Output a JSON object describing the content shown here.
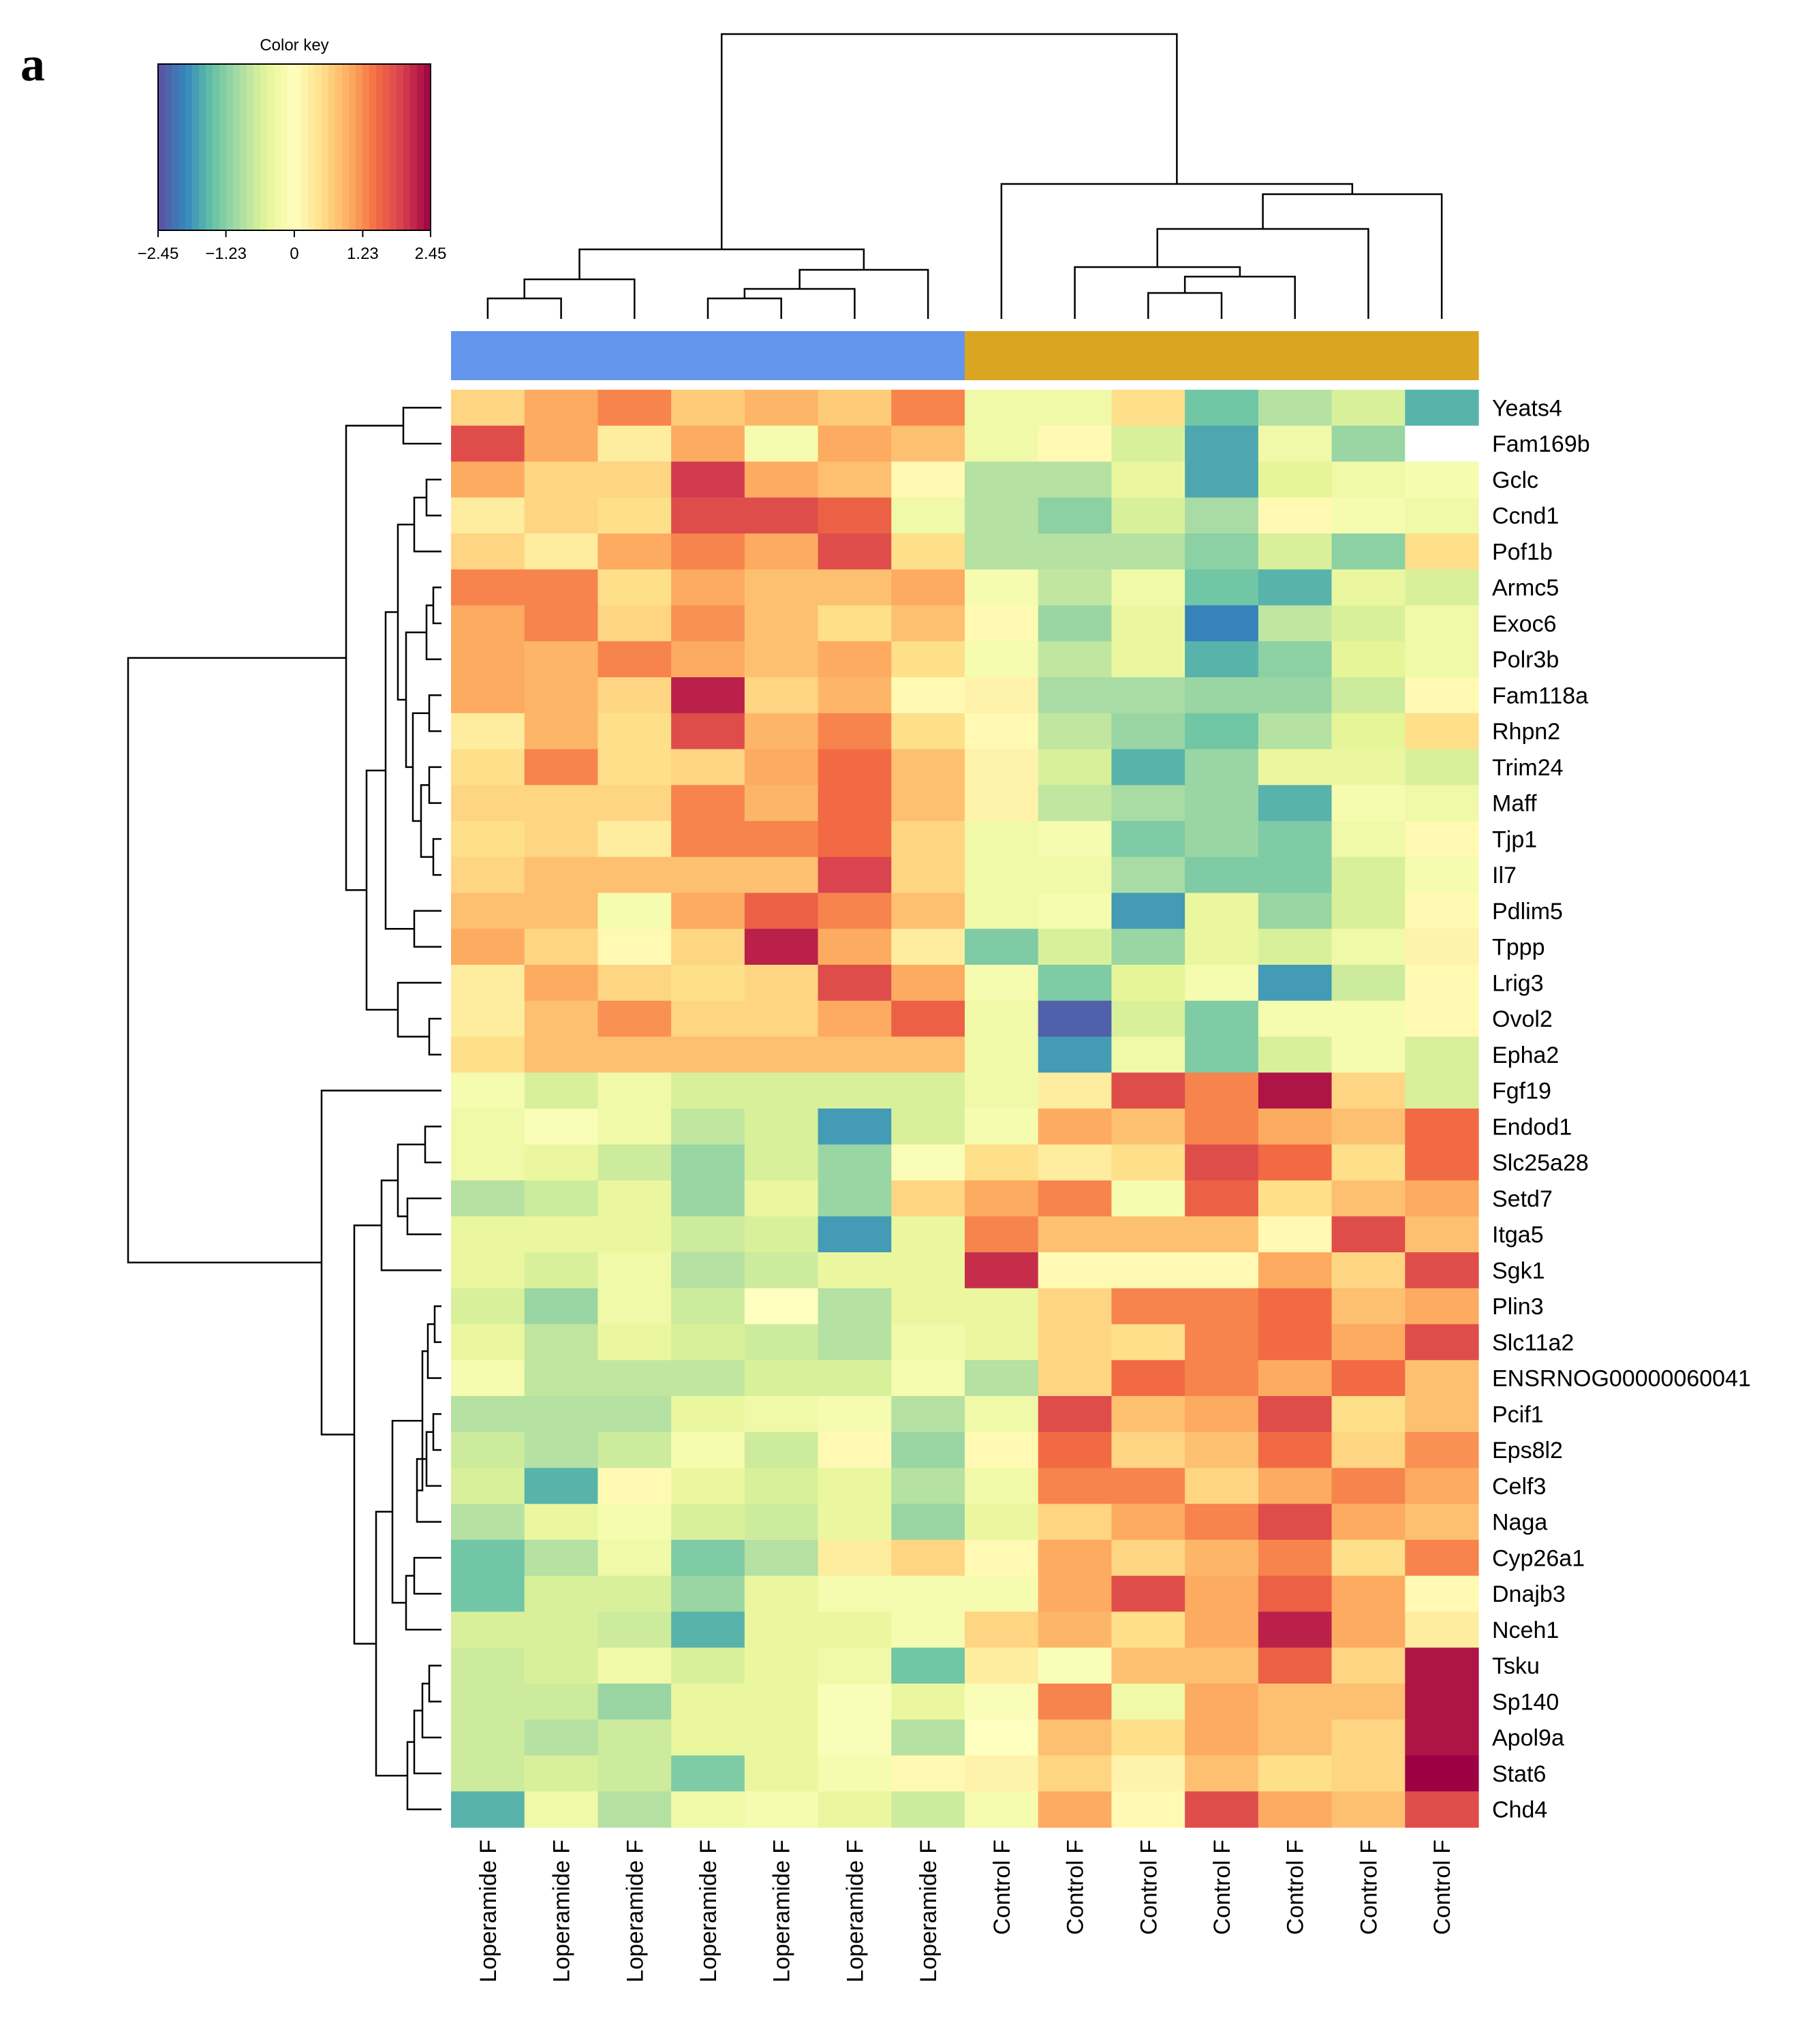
{
  "chart_data": {
    "type": "heatmap",
    "panel_label": "a",
    "color_key": {
      "title": "Color key",
      "min": -2.45,
      "max": 2.45,
      "tick_values": [
        -2.45,
        -1.23,
        0,
        1.23,
        2.45
      ],
      "tick_labels": [
        "−2.45",
        "−1.23",
        "0",
        "1.23",
        "2.45"
      ],
      "palette": [
        "#5e4fa2",
        "#3288bd",
        "#66c2a5",
        "#abdda4",
        "#e6f598",
        "#ffffbf",
        "#fee08b",
        "#fdae61",
        "#f46d43",
        "#d53e4f",
        "#9e0142"
      ]
    },
    "columns": [
      "Loperamide F",
      "Loperamide F",
      "Loperamide F",
      "Loperamide F",
      "Loperamide F",
      "Loperamide F",
      "Loperamide F",
      "Control F",
      "Control F",
      "Control F",
      "Control F",
      "Control F",
      "Control F",
      "Control F"
    ],
    "column_groups": [
      {
        "name": "Loperamide F",
        "color": "#6495ED"
      },
      {
        "name": "Control F",
        "color": "#DAA520"
      }
    ],
    "column_group_index": [
      0,
      0,
      0,
      0,
      0,
      0,
      0,
      1,
      1,
      1,
      1,
      1,
      1,
      1
    ],
    "rows": [
      "Yeats4",
      "Fam169b",
      "Gclc",
      "Ccnd1",
      "Pof1b",
      "Armc5",
      "Exoc6",
      "Polr3b",
      "Fam118a",
      "Rhpn2",
      "Trim24",
      "Maff",
      "Tjp1",
      "Il7",
      "Pdlim5",
      "Tppp",
      "Lrig3",
      "Ovol2",
      "Epha2",
      "Fgf19",
      "Endod1",
      "Slc25a28",
      "Setd7",
      "Itga5",
      "Sgk1",
      "Plin3",
      "Slc11a2",
      "ENSRNOG00000060041",
      "Pcif1",
      "Eps8l2",
      "Celf3",
      "Naga",
      "Cyp26a1",
      "Dnajb3",
      "Nceh1",
      "Tsku",
      "Sp140",
      "Apol9a",
      "Stat6",
      "Chd4"
    ],
    "values": [
      [
        0.6,
        1.0,
        1.3,
        0.7,
        0.9,
        0.7,
        1.3,
        -0.3,
        -0.3,
        0.5,
        -1.4,
        -0.9,
        -0.6,
        -1.6
      ],
      [
        1.8,
        1.0,
        0.3,
        1.0,
        -0.2,
        1.0,
        0.8,
        -0.3,
        0.1,
        -0.6,
        -1.7,
        -0.3,
        -1.1,
        null
      ],
      [
        1.0,
        0.6,
        0.6,
        2.0,
        1.0,
        0.8,
        0.1,
        -0.9,
        -0.9,
        -0.4,
        -1.7,
        -0.5,
        -0.3,
        -0.2
      ],
      [
        0.3,
        0.6,
        0.5,
        1.8,
        1.8,
        1.6,
        -0.3,
        -0.9,
        -1.2,
        -0.6,
        -1.0,
        0.1,
        -0.2,
        -0.3
      ],
      [
        0.6,
        0.3,
        1.0,
        1.3,
        1.0,
        1.8,
        0.5,
        -0.9,
        -0.9,
        -0.9,
        -1.2,
        -0.6,
        -1.2,
        0.5
      ],
      [
        1.3,
        1.3,
        0.5,
        1.0,
        0.8,
        0.8,
        1.0,
        -0.2,
        -0.8,
        -0.3,
        -1.4,
        -1.6,
        -0.4,
        -0.6
      ],
      [
        1.0,
        1.3,
        0.6,
        1.2,
        0.8,
        0.5,
        0.8,
        0.1,
        -1.1,
        -0.4,
        -2.0,
        -0.8,
        -0.6,
        -0.3
      ],
      [
        1.0,
        0.9,
        1.3,
        1.0,
        0.8,
        1.0,
        0.5,
        -0.2,
        -0.8,
        -0.4,
        -1.6,
        -1.2,
        -0.5,
        -0.3
      ],
      [
        1.0,
        0.9,
        0.6,
        2.2,
        0.6,
        0.9,
        0.1,
        0.2,
        -1.0,
        -1.0,
        -1.1,
        -1.1,
        -0.7,
        0.1
      ],
      [
        0.3,
        0.9,
        0.5,
        1.8,
        0.9,
        1.3,
        0.5,
        0.1,
        -0.8,
        -1.1,
        -1.4,
        -0.9,
        -0.5,
        0.5
      ],
      [
        0.5,
        1.3,
        0.5,
        0.6,
        1.0,
        1.5,
        0.8,
        0.2,
        -0.6,
        -1.6,
        -1.1,
        -0.4,
        -0.4,
        -0.6
      ],
      [
        0.6,
        0.6,
        0.6,
        1.3,
        0.9,
        1.5,
        0.8,
        0.2,
        -0.8,
        -1.0,
        -1.1,
        -1.6,
        -0.2,
        -0.3
      ],
      [
        0.5,
        0.6,
        0.3,
        1.3,
        1.3,
        1.5,
        0.6,
        -0.3,
        -0.2,
        -1.3,
        -1.1,
        -1.3,
        -0.3,
        0.1
      ],
      [
        0.6,
        0.8,
        0.8,
        0.8,
        0.8,
        1.9,
        0.6,
        -0.3,
        -0.3,
        -1.0,
        -1.3,
        -1.3,
        -0.6,
        -0.2
      ],
      [
        0.8,
        0.8,
        -0.2,
        1.0,
        1.6,
        1.3,
        0.8,
        -0.3,
        -0.2,
        -1.8,
        -0.4,
        -1.1,
        -0.6,
        0.1
      ],
      [
        1.0,
        0.6,
        0.1,
        0.6,
        2.2,
        1.0,
        0.3,
        -1.3,
        -0.6,
        -1.1,
        -0.4,
        -0.6,
        -0.3,
        0.2
      ],
      [
        0.3,
        1.0,
        0.6,
        0.5,
        0.6,
        1.8,
        1.0,
        -0.2,
        -1.3,
        -0.5,
        -0.2,
        -1.8,
        -0.7,
        0.1
      ],
      [
        0.3,
        0.8,
        1.2,
        0.6,
        0.6,
        1.0,
        1.6,
        -0.3,
        -2.3,
        -0.6,
        -1.3,
        -0.2,
        -0.2,
        0.1
      ],
      [
        0.5,
        0.8,
        0.8,
        0.8,
        0.8,
        0.8,
        0.8,
        -0.3,
        -1.8,
        -0.3,
        -1.3,
        -0.6,
        -0.2,
        -0.6
      ],
      [
        -0.2,
        -0.6,
        -0.3,
        -0.6,
        -0.6,
        -0.6,
        -0.6,
        -0.3,
        0.3,
        1.8,
        1.3,
        2.3,
        0.6,
        -0.6
      ],
      [
        -0.3,
        -0.1,
        -0.3,
        -0.8,
        -0.6,
        -1.8,
        -0.6,
        -0.2,
        1.0,
        0.8,
        1.3,
        1.0,
        0.8,
        1.5
      ],
      [
        -0.3,
        -0.4,
        -0.7,
        -1.1,
        -0.6,
        -1.1,
        -0.1,
        0.5,
        0.3,
        0.5,
        1.8,
        1.5,
        0.5,
        1.5
      ],
      [
        -0.9,
        -0.7,
        -0.4,
        -1.1,
        -0.4,
        -1.1,
        0.6,
        1.0,
        1.3,
        -0.2,
        1.6,
        0.5,
        0.8,
        1.0
      ],
      [
        -0.4,
        -0.4,
        -0.4,
        -0.7,
        -0.6,
        -1.8,
        -0.4,
        1.3,
        0.8,
        0.8,
        0.8,
        0.1,
        1.8,
        0.8
      ],
      [
        -0.4,
        -0.6,
        -0.3,
        -0.9,
        -0.7,
        -0.4,
        -0.4,
        2.1,
        0.1,
        0.1,
        0.1,
        1.0,
        0.6,
        1.8
      ],
      [
        -0.6,
        -1.1,
        -0.3,
        -0.7,
        0.0,
        -0.9,
        -0.4,
        -0.4,
        0.6,
        1.3,
        1.3,
        1.5,
        0.8,
        1.0
      ],
      [
        -0.4,
        -0.8,
        -0.4,
        -0.6,
        -0.7,
        -0.9,
        -0.3,
        -0.4,
        0.6,
        0.5,
        1.3,
        1.5,
        1.0,
        1.8
      ],
      [
        -0.2,
        -0.8,
        -0.8,
        -0.8,
        -0.6,
        -0.6,
        -0.2,
        -0.9,
        0.6,
        1.5,
        1.3,
        1.0,
        1.5,
        0.8
      ],
      [
        -0.9,
        -0.9,
        -0.9,
        -0.4,
        -0.3,
        -0.2,
        -0.9,
        -0.3,
        1.8,
        0.8,
        1.0,
        1.8,
        0.5,
        0.8
      ],
      [
        -0.7,
        -0.9,
        -0.7,
        -0.2,
        -0.7,
        0.1,
        -1.1,
        0.1,
        1.5,
        0.6,
        0.8,
        1.5,
        0.6,
        1.2
      ],
      [
        -0.6,
        -1.6,
        0.1,
        -0.4,
        -0.6,
        -0.4,
        -0.9,
        -0.3,
        1.3,
        1.3,
        0.6,
        1.0,
        1.3,
        1.0
      ],
      [
        -0.9,
        -0.4,
        -0.2,
        -0.6,
        -0.7,
        -0.4,
        -1.1,
        -0.4,
        0.6,
        1.0,
        1.3,
        1.8,
        1.0,
        0.8
      ],
      [
        -1.4,
        -0.9,
        -0.3,
        -1.3,
        -0.9,
        0.3,
        0.6,
        0.1,
        1.0,
        0.6,
        0.9,
        1.3,
        0.5,
        1.3
      ],
      [
        -1.4,
        -0.6,
        -0.6,
        -1.1,
        -0.4,
        -0.2,
        -0.2,
        -0.2,
        1.0,
        1.8,
        1.0,
        1.6,
        1.0,
        0.1
      ],
      [
        -0.6,
        -0.6,
        -0.7,
        -1.6,
        -0.4,
        -0.4,
        -0.2,
        0.6,
        0.9,
        0.5,
        1.0,
        2.2,
        1.0,
        0.3
      ],
      [
        -0.7,
        -0.6,
        -0.3,
        -0.6,
        -0.4,
        -0.3,
        -1.4,
        0.3,
        -0.1,
        0.8,
        0.8,
        1.6,
        0.6,
        2.3
      ],
      [
        -0.7,
        -0.7,
        -1.1,
        -0.4,
        -0.4,
        -0.1,
        -0.4,
        -0.1,
        1.3,
        -0.3,
        1.0,
        0.8,
        0.8,
        2.3
      ],
      [
        -0.7,
        -0.9,
        -0.7,
        -0.4,
        -0.4,
        -0.1,
        -0.9,
        0.0,
        0.8,
        0.5,
        1.0,
        0.8,
        0.6,
        2.3
      ],
      [
        -0.7,
        -0.6,
        -0.7,
        -1.3,
        -0.4,
        -0.2,
        0.1,
        0.2,
        0.6,
        0.2,
        0.8,
        0.5,
        0.6,
        2.5
      ],
      [
        -1.6,
        -0.3,
        -0.9,
        -0.3,
        -0.2,
        -0.4,
        -0.7,
        -0.2,
        1.0,
        0.1,
        1.8,
        1.0,
        0.8,
        1.8
      ]
    ]
  }
}
